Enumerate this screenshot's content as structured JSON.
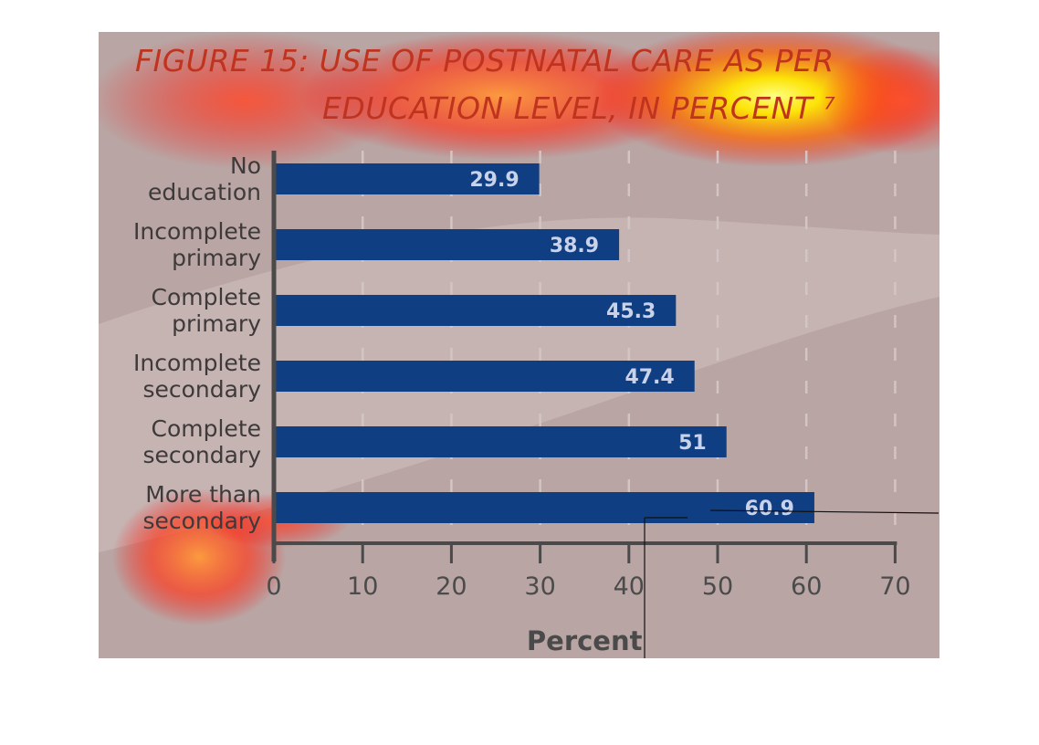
{
  "title": {
    "line1": "FIGURE 15: USE OF POSTNATAL CARE AS PER",
    "line2": "EDUCATION LEVEL, IN PERCENT ⁷"
  },
  "chart_data": {
    "type": "bar",
    "orientation": "horizontal",
    "title": "FIGURE 15: USE OF POSTNATAL CARE AS PER EDUCATION LEVEL, IN PERCENT ⁷",
    "categories": [
      [
        "No",
        "education"
      ],
      [
        "Incomplete",
        "primary"
      ],
      [
        "Complete",
        "primary"
      ],
      [
        "Incomplete",
        "secondary"
      ],
      [
        "Complete",
        "secondary"
      ],
      [
        "More than",
        "secondary"
      ]
    ],
    "values": [
      29.9,
      38.9,
      45.3,
      47.4,
      51,
      60.9
    ],
    "value_labels": [
      "29.9",
      "38.9",
      "45.3",
      "47.4",
      "51",
      "60.9"
    ],
    "xlabel": "Percent",
    "ylabel": "",
    "xlim": [
      0,
      70
    ],
    "xticks": [
      "0",
      "10",
      "20",
      "30",
      "40",
      "50",
      "60",
      "70"
    ],
    "grid": "vertical dashed",
    "colors": {
      "bar": "#0f3e82",
      "background": "#b9a5a3",
      "title": "#c0341f",
      "axis": "#4a4a4a"
    }
  }
}
